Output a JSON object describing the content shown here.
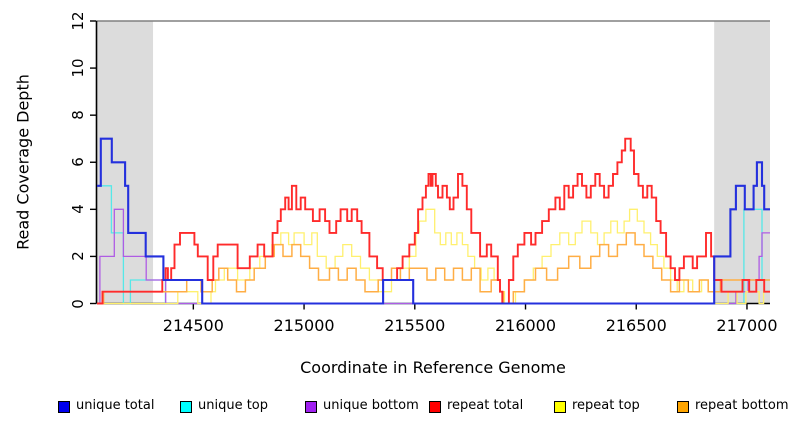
{
  "chart_data": {
    "type": "line",
    "subtype": "step-coverage-plot",
    "xlabel": "Coordinate in Reference Genome",
    "ylabel": "Read Coverage Depth",
    "x_range": [
      214065,
      217104
    ],
    "y_range": [
      0,
      12
    ],
    "x_ticks": [
      214500,
      215000,
      215500,
      216000,
      216500,
      217000
    ],
    "y_ticks": [
      0,
      2,
      4,
      6,
      8,
      10,
      12
    ],
    "grid": false,
    "legend_position": "bottom",
    "masked_region_color": "#dcdcdc",
    "top_border_color": "#808080",
    "axis_color": "#000000",
    "masked_regions": [
      [
        214065,
        214318
      ],
      [
        216852,
        217104
      ]
    ],
    "series": [
      {
        "name": "unique-top",
        "label": "unique top",
        "legend_color": "#00ffff",
        "line_color": "#55e8e8",
        "width": 1.3,
        "steps": [
          [
            214065,
            5
          ],
          [
            214130,
            3
          ],
          [
            214184,
            0
          ],
          [
            214216,
            1
          ],
          [
            214374,
            0
          ],
          [
            216986,
            4
          ],
          [
            217068,
            1
          ]
        ]
      },
      {
        "name": "unique-bottom",
        "label": "unique bottom",
        "legend_color": "#a020f0",
        "line_color": "#af5ce4",
        "width": 1.3,
        "steps": [
          [
            214065,
            0
          ],
          [
            214078,
            2
          ],
          [
            214143,
            4
          ],
          [
            214184,
            2
          ],
          [
            214287,
            1
          ],
          [
            214375,
            0
          ],
          [
            216950,
            0.5
          ],
          [
            217005,
            1
          ],
          [
            217055,
            2
          ],
          [
            217068,
            3
          ]
        ]
      },
      {
        "name": "repeat-top",
        "label": "repeat top",
        "legend_color": "#ffff00",
        "line_color": "#fff06e",
        "width": 1.3,
        "steps": [
          [
            214065,
            0
          ],
          [
            214430,
            0.5
          ],
          [
            214520,
            0
          ],
          [
            214580,
            0.5
          ],
          [
            214600,
            1
          ],
          [
            214640,
            1.5
          ],
          [
            214700,
            1
          ],
          [
            214755,
            1.5
          ],
          [
            214800,
            2
          ],
          [
            214855,
            2.5
          ],
          [
            214895,
            3
          ],
          [
            214930,
            2.5
          ],
          [
            214955,
            3
          ],
          [
            215000,
            2.5
          ],
          [
            215035,
            3
          ],
          [
            215060,
            2
          ],
          [
            215100,
            1.5
          ],
          [
            215140,
            2
          ],
          [
            215175,
            2.5
          ],
          [
            215215,
            2
          ],
          [
            215255,
            1.5
          ],
          [
            215295,
            1
          ],
          [
            215335,
            0.5
          ],
          [
            215395,
            1
          ],
          [
            215435,
            1.5
          ],
          [
            215475,
            2
          ],
          [
            215505,
            3
          ],
          [
            215520,
            3.5
          ],
          [
            215550,
            4
          ],
          [
            215590,
            3
          ],
          [
            215615,
            2.5
          ],
          [
            215640,
            3
          ],
          [
            215665,
            2.5
          ],
          [
            215690,
            3
          ],
          [
            215715,
            2.5
          ],
          [
            215740,
            2
          ],
          [
            215770,
            1.5
          ],
          [
            215800,
            1
          ],
          [
            215830,
            1.5
          ],
          [
            215858,
            1
          ],
          [
            215885,
            0.5
          ],
          [
            215905,
            0
          ],
          [
            215955,
            0.5
          ],
          [
            215995,
            1
          ],
          [
            216035,
            1.5
          ],
          [
            216075,
            2
          ],
          [
            216115,
            2.5
          ],
          [
            216155,
            3
          ],
          [
            216195,
            2.5
          ],
          [
            216225,
            3
          ],
          [
            216255,
            3.5
          ],
          [
            216295,
            3
          ],
          [
            216325,
            2.5
          ],
          [
            216355,
            3
          ],
          [
            216385,
            3.5
          ],
          [
            216415,
            3
          ],
          [
            216445,
            3.5
          ],
          [
            216470,
            4
          ],
          [
            216505,
            3.5
          ],
          [
            216535,
            3
          ],
          [
            216565,
            2.5
          ],
          [
            216595,
            2
          ],
          [
            216625,
            1.5
          ],
          [
            216655,
            1
          ],
          [
            216685,
            0.5
          ],
          [
            216715,
            1
          ],
          [
            216755,
            0.5
          ],
          [
            216795,
            1
          ],
          [
            216825,
            0.5
          ],
          [
            216852,
            0
          ],
          [
            216915,
            0.5
          ],
          [
            216955,
            0
          ],
          [
            216995,
            0.5
          ],
          [
            217055,
            0
          ],
          [
            217075,
            0.5
          ]
        ]
      },
      {
        "name": "repeat-bottom",
        "label": "repeat bottom",
        "legend_color": "#ffa500",
        "line_color": "#ffae45",
        "width": 1.5,
        "steps": [
          [
            214065,
            0
          ],
          [
            214095,
            0.5
          ],
          [
            214470,
            1
          ],
          [
            214535,
            0.5
          ],
          [
            214585,
            1
          ],
          [
            214615,
            1.5
          ],
          [
            214655,
            1
          ],
          [
            214695,
            0.5
          ],
          [
            214735,
            1
          ],
          [
            214775,
            1.5
          ],
          [
            214825,
            2
          ],
          [
            214865,
            2.5
          ],
          [
            214905,
            2
          ],
          [
            214945,
            2.5
          ],
          [
            214985,
            2
          ],
          [
            215025,
            1.5
          ],
          [
            215065,
            1
          ],
          [
            215115,
            1.5
          ],
          [
            215155,
            1
          ],
          [
            215195,
            1.5
          ],
          [
            215235,
            1
          ],
          [
            215275,
            0.5
          ],
          [
            215335,
            1
          ],
          [
            215395,
            1.5
          ],
          [
            215435,
            1
          ],
          [
            215475,
            1.5
          ],
          [
            215555,
            1
          ],
          [
            215595,
            1.5
          ],
          [
            215635,
            1
          ],
          [
            215675,
            1.5
          ],
          [
            215715,
            1
          ],
          [
            215755,
            1.5
          ],
          [
            215795,
            0.5
          ],
          [
            215845,
            1
          ],
          [
            215885,
            0.5
          ],
          [
            215900,
            0
          ],
          [
            215945,
            0.5
          ],
          [
            215995,
            1
          ],
          [
            216045,
            1.5
          ],
          [
            216095,
            1
          ],
          [
            216145,
            1.5
          ],
          [
            216195,
            2
          ],
          [
            216245,
            1.5
          ],
          [
            216295,
            2
          ],
          [
            216335,
            2.5
          ],
          [
            216375,
            2
          ],
          [
            216415,
            2.5
          ],
          [
            216455,
            3
          ],
          [
            216495,
            2.5
          ],
          [
            216535,
            2
          ],
          [
            216575,
            1.5
          ],
          [
            216615,
            1
          ],
          [
            216655,
            0.5
          ],
          [
            216695,
            1
          ],
          [
            216735,
            0.5
          ],
          [
            216785,
            1
          ],
          [
            216825,
            0.5
          ],
          [
            216880,
            1
          ]
        ]
      },
      {
        "name": "repeat-total",
        "label": "repeat total",
        "legend_color": "#ff0000",
        "line_color": "#ff2b2b",
        "width": 1.9,
        "steps": [
          [
            214065,
            0
          ],
          [
            214090,
            0.5
          ],
          [
            214360,
            1
          ],
          [
            214375,
            1.5
          ],
          [
            214385,
            1
          ],
          [
            214400,
            1.5
          ],
          [
            214415,
            2.5
          ],
          [
            214440,
            3
          ],
          [
            214505,
            2.5
          ],
          [
            214520,
            2
          ],
          [
            214565,
            1
          ],
          [
            214590,
            2
          ],
          [
            214610,
            2.5
          ],
          [
            214700,
            1.5
          ],
          [
            214755,
            2
          ],
          [
            214790,
            2.5
          ],
          [
            214820,
            2
          ],
          [
            214858,
            3
          ],
          [
            214880,
            3.5
          ],
          [
            214895,
            4
          ],
          [
            214915,
            4.5
          ],
          [
            214930,
            4
          ],
          [
            214945,
            5
          ],
          [
            214965,
            4
          ],
          [
            214985,
            4.5
          ],
          [
            215005,
            4
          ],
          [
            215040,
            3.5
          ],
          [
            215070,
            4
          ],
          [
            215095,
            3.5
          ],
          [
            215115,
            3
          ],
          [
            215145,
            3.5
          ],
          [
            215165,
            4
          ],
          [
            215195,
            3.5
          ],
          [
            215215,
            4
          ],
          [
            215240,
            3.5
          ],
          [
            215260,
            3
          ],
          [
            215295,
            2
          ],
          [
            215330,
            1.5
          ],
          [
            215355,
            1
          ],
          [
            215420,
            1.5
          ],
          [
            215445,
            2
          ],
          [
            215475,
            2.5
          ],
          [
            215500,
            3
          ],
          [
            215515,
            4
          ],
          [
            215535,
            4.5
          ],
          [
            215550,
            5
          ],
          [
            215562,
            5.5
          ],
          [
            215572,
            5
          ],
          [
            215580,
            5.5
          ],
          [
            215595,
            5
          ],
          [
            215605,
            4.5
          ],
          [
            215625,
            5
          ],
          [
            215645,
            4.5
          ],
          [
            215658,
            4
          ],
          [
            215675,
            4.5
          ],
          [
            215695,
            5.5
          ],
          [
            215715,
            5
          ],
          [
            215735,
            4
          ],
          [
            215755,
            3
          ],
          [
            215795,
            2
          ],
          [
            215825,
            2.5
          ],
          [
            215845,
            2
          ],
          [
            215875,
            1
          ],
          [
            215885,
            0.5
          ],
          [
            215895,
            0
          ],
          [
            215925,
            1
          ],
          [
            215945,
            2
          ],
          [
            215965,
            2.5
          ],
          [
            215995,
            3
          ],
          [
            216025,
            2.5
          ],
          [
            216045,
            3
          ],
          [
            216075,
            3.5
          ],
          [
            216105,
            4
          ],
          [
            216135,
            4.5
          ],
          [
            216155,
            4
          ],
          [
            216175,
            5
          ],
          [
            216195,
            4.5
          ],
          [
            216215,
            5
          ],
          [
            216235,
            5.5
          ],
          [
            216255,
            5
          ],
          [
            216275,
            4.5
          ],
          [
            216295,
            5
          ],
          [
            216315,
            5.5
          ],
          [
            216335,
            5
          ],
          [
            216355,
            4.5
          ],
          [
            216375,
            5
          ],
          [
            216395,
            5.5
          ],
          [
            216415,
            6
          ],
          [
            216435,
            6.5
          ],
          [
            216450,
            7
          ],
          [
            216475,
            6.5
          ],
          [
            216490,
            5.5
          ],
          [
            216510,
            5
          ],
          [
            216530,
            4.5
          ],
          [
            216550,
            5
          ],
          [
            216570,
            4.5
          ],
          [
            216590,
            3.5
          ],
          [
            216610,
            3
          ],
          [
            216635,
            2
          ],
          [
            216655,
            1.5
          ],
          [
            216675,
            1
          ],
          [
            216695,
            1.5
          ],
          [
            216715,
            2
          ],
          [
            216755,
            1.5
          ],
          [
            216775,
            2
          ],
          [
            216815,
            3
          ],
          [
            216838,
            2
          ],
          [
            216852,
            1
          ],
          [
            216885,
            0.5
          ],
          [
            216980,
            1
          ],
          [
            217010,
            0.5
          ],
          [
            217042,
            1
          ],
          [
            217078,
            0.5
          ]
        ]
      },
      {
        "name": "unique-total",
        "label": "unique total",
        "legend_color": "#0000ee",
        "line_color": "#2430dd",
        "width": 2.1,
        "steps": [
          [
            214065,
            5
          ],
          [
            214082,
            7
          ],
          [
            214132,
            6
          ],
          [
            214192,
            5
          ],
          [
            214206,
            3
          ],
          [
            214285,
            2
          ],
          [
            214365,
            1
          ],
          [
            214540,
            0
          ],
          [
            215357,
            1
          ],
          [
            215493,
            0
          ],
          [
            216852,
            2
          ],
          [
            216925,
            4
          ],
          [
            216950,
            5
          ],
          [
            216990,
            4
          ],
          [
            217030,
            5
          ],
          [
            217045,
            6
          ],
          [
            217068,
            5
          ],
          [
            217078,
            4
          ]
        ]
      }
    ],
    "legend_order": [
      "unique-total",
      "unique-top",
      "unique-bottom",
      "repeat-total",
      "repeat-top",
      "repeat-bottom"
    ]
  }
}
